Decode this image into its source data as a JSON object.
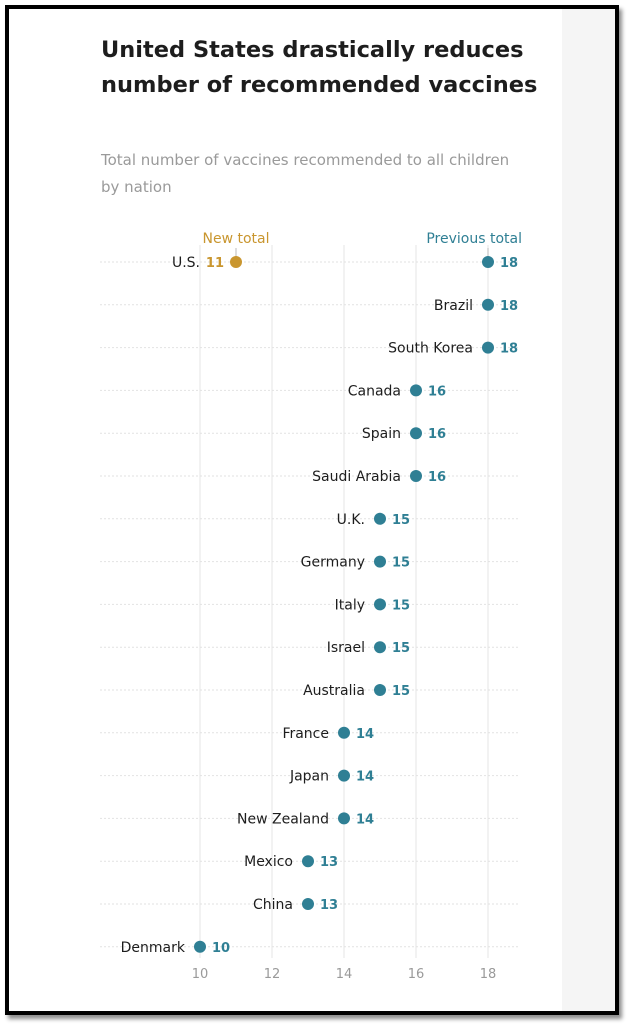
{
  "chart_data": {
    "type": "dot",
    "title": "United States drastically reduces number of recommended vaccines",
    "subtitle": "Total number of vaccines recommended to all children by nation",
    "xlim": [
      10,
      18
    ],
    "xticks": [
      "10",
      "12",
      "14",
      "16",
      "18"
    ],
    "grid": true,
    "legend": {
      "new_label": "New total",
      "previous_label": "Previous total"
    },
    "colors": {
      "new": "#c9962f",
      "previous": "#2f7f94"
    },
    "highlight": {
      "category": "U.S.",
      "new": 11,
      "previous": 18
    },
    "categories": [
      "Brazil",
      "South Korea",
      "Canada",
      "Spain",
      "Saudi Arabia",
      "U.K.",
      "Germany",
      "Italy",
      "Israel",
      "Australia",
      "France",
      "Japan",
      "New Zealand",
      "Mexico",
      "China",
      "Denmark"
    ],
    "values": [
      18,
      18,
      16,
      16,
      16,
      15,
      15,
      15,
      15,
      15,
      14,
      14,
      14,
      13,
      13,
      10
    ]
  }
}
